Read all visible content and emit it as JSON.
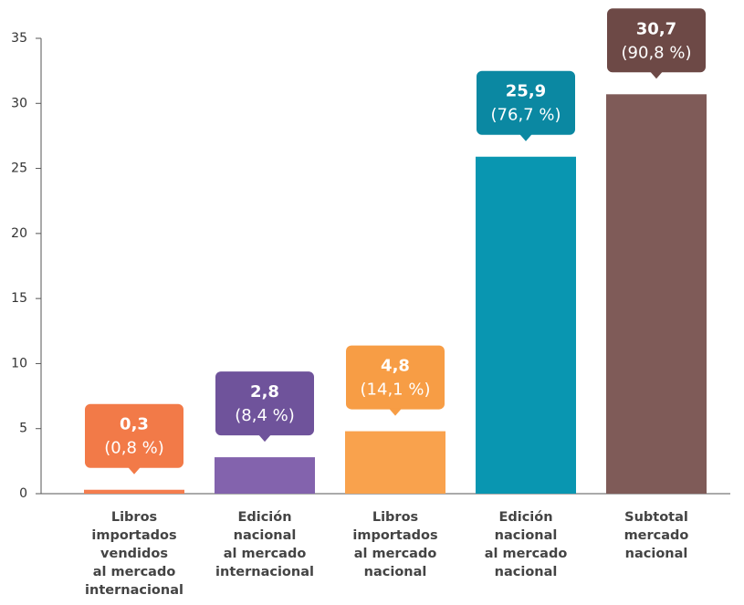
{
  "chart_data": {
    "type": "bar",
    "categories": [
      [
        "Libros",
        "importados",
        "vendidos",
        "al mercado",
        "internacional"
      ],
      [
        "Edición",
        "nacional",
        "al mercado",
        "internacional"
      ],
      [
        "Libros",
        "importados",
        "al mercado",
        "nacional"
      ],
      [
        "Edición",
        "nacional",
        "al mercado",
        "nacional"
      ],
      [
        "Subtotal",
        "mercado",
        "nacional"
      ]
    ],
    "values": [
      0.3,
      2.8,
      4.8,
      25.9,
      30.7
    ],
    "value_labels": [
      "0,3",
      "2,8",
      "4,8",
      "25,9",
      "30,7"
    ],
    "percent_labels": [
      "(0,8 %)",
      "(8,4 %)",
      "(14,1 %)",
      "(76,7 %)",
      "(90,8 %)"
    ],
    "colors": [
      "#f47d4e",
      "#8363ad",
      "#f9a24d",
      "#0996b1",
      "#7f5b58"
    ],
    "label_colors": [
      "#f27a48",
      "#6f539b",
      "#f79d45",
      "#0b88a2",
      "#6d4946"
    ],
    "ylim": [
      0,
      35
    ],
    "yticks": [
      0,
      5,
      10,
      15,
      20,
      25,
      30,
      35
    ]
  }
}
